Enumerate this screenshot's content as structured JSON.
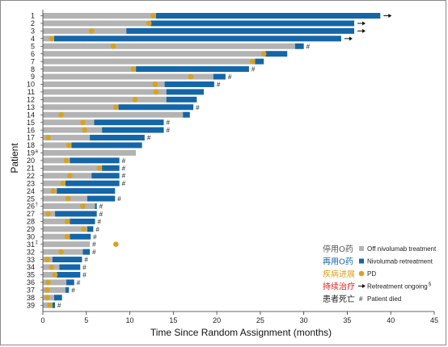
{
  "chart_data": {
    "type": "bar",
    "orientation": "horizontal-stacked",
    "xlabel": "Time Since Random Assignment (months)",
    "ylabel": "Patient",
    "xlim": [
      0,
      45
    ],
    "xticks": [
      0,
      5,
      10,
      15,
      20,
      25,
      30,
      35,
      40,
      45
    ],
    "colors": {
      "off": "#b3b3b3",
      "retreat": "#1466a8",
      "pd": "#d9a21b",
      "arrow": "#111111",
      "cn_off": "#555555",
      "cn_retreat": "#1466a8",
      "cn_pd": "#d9a21b",
      "cn_ongoing": "#e0201c",
      "cn_died": "#222222"
    },
    "legend": [
      {
        "key": "off",
        "cn": "停用O药",
        "en": "Off nivolumab treatment",
        "marker": "gray-square"
      },
      {
        "key": "retreat",
        "cn": "再用O药",
        "en": "Nivolumab retreatment",
        "marker": "blue-square"
      },
      {
        "key": "pd",
        "cn": "疾病进展",
        "en": "PD",
        "marker": "orange-dot"
      },
      {
        "key": "ongoing",
        "cn": "持续治疗",
        "en": "Retreatment ongoing",
        "sup": "§",
        "marker": "arrow"
      },
      {
        "key": "died",
        "cn": "患者死亡",
        "en": "Patient died",
        "marker": "#"
      }
    ],
    "patients": [
      {
        "label": "1",
        "sup": "",
        "off": 13.0,
        "end": 38.8,
        "pd": 12.7,
        "ongoing": true,
        "died": false
      },
      {
        "label": "2",
        "sup": "",
        "off": 12.4,
        "end": 35.8,
        "pd": 12.2,
        "ongoing": true,
        "died": false
      },
      {
        "label": "3",
        "sup": "",
        "off": 9.6,
        "end": 35.8,
        "pd": 5.6,
        "ongoing": true,
        "died": false
      },
      {
        "label": "4",
        "sup": "",
        "off": 1.3,
        "end": 34.3,
        "pd": 1.0,
        "ongoing": true,
        "died": false
      },
      {
        "label": "5",
        "sup": "",
        "off": 29.0,
        "end": 30.0,
        "pd": 8.1,
        "ongoing": false,
        "died": true
      },
      {
        "label": "6",
        "sup": "",
        "off": 25.6,
        "end": 28.1,
        "pd": 25.4,
        "ongoing": false,
        "died": false
      },
      {
        "label": "7",
        "sup": "",
        "off": 24.4,
        "end": 25.4,
        "pd": 24.1,
        "ongoing": false,
        "died": false
      },
      {
        "label": "8",
        "sup": "",
        "off": 10.7,
        "end": 23.7,
        "pd": 10.4,
        "ongoing": false,
        "died": true
      },
      {
        "label": "9",
        "sup": "",
        "off": 19.6,
        "end": 21.0,
        "pd": 17.0,
        "ongoing": false,
        "died": true
      },
      {
        "label": "10",
        "sup": "",
        "off": 14.0,
        "end": 19.7,
        "pd": 12.9,
        "ongoing": false,
        "died": true
      },
      {
        "label": "11",
        "sup": "",
        "off": 14.2,
        "end": 18.5,
        "pd": 13.0,
        "ongoing": false,
        "died": false
      },
      {
        "label": "12",
        "sup": "",
        "off": 14.2,
        "end": 17.7,
        "pd": 10.6,
        "ongoing": false,
        "died": false
      },
      {
        "label": "13",
        "sup": "",
        "off": 8.7,
        "end": 17.3,
        "pd": 8.4,
        "ongoing": false,
        "died": true
      },
      {
        "label": "14",
        "sup": "",
        "off": 16.1,
        "end": 16.9,
        "pd": 2.1,
        "ongoing": false,
        "died": false
      },
      {
        "label": "15",
        "sup": "",
        "off": 5.9,
        "end": 13.9,
        "pd": 4.6,
        "ongoing": false,
        "died": true
      },
      {
        "label": "16",
        "sup": "",
        "off": 6.8,
        "end": 13.9,
        "pd": 4.8,
        "ongoing": false,
        "died": true
      },
      {
        "label": "17",
        "sup": "",
        "off": 5.4,
        "end": 11.7,
        "pd": 0.6,
        "ongoing": false,
        "died": true
      },
      {
        "label": "18",
        "sup": "",
        "off": 3.3,
        "end": 11.4,
        "pd": 3.0,
        "ongoing": false,
        "died": false
      },
      {
        "label": "19",
        "sup": "a",
        "off": 10.7,
        "end": 10.7,
        "pd": null,
        "ongoing": false,
        "died": false
      },
      {
        "label": "20",
        "sup": "",
        "off": 3.1,
        "end": 8.8,
        "pd": 2.7,
        "ongoing": false,
        "died": true
      },
      {
        "label": "21",
        "sup": "",
        "off": 6.8,
        "end": 8.8,
        "pd": 6.5,
        "ongoing": false,
        "died": true
      },
      {
        "label": "22",
        "sup": "",
        "off": 5.6,
        "end": 8.8,
        "pd": 3.1,
        "ongoing": false,
        "died": true
      },
      {
        "label": "23",
        "sup": "",
        "off": 2.6,
        "end": 8.8,
        "pd": 2.3,
        "ongoing": false,
        "died": true
      },
      {
        "label": "24",
        "sup": "",
        "off": 1.6,
        "end": 8.3,
        "pd": 1.2,
        "ongoing": false,
        "died": false
      },
      {
        "label": "25",
        "sup": "",
        "off": 5.1,
        "end": 8.3,
        "pd": 2.9,
        "ongoing": false,
        "died": true
      },
      {
        "label": "26",
        "sup": "†",
        "off": 6.0,
        "end": 6.2,
        "pd": 4.6,
        "ongoing": false,
        "died": true
      },
      {
        "label": "27",
        "sup": "",
        "off": 1.4,
        "end": 6.2,
        "pd": 0.6,
        "ongoing": false,
        "died": true
      },
      {
        "label": "28",
        "sup": "",
        "off": 3.1,
        "end": 6.0,
        "pd": 2.8,
        "ongoing": false,
        "died": true
      },
      {
        "label": "29",
        "sup": "",
        "off": 5.1,
        "end": 5.8,
        "pd": 4.7,
        "ongoing": false,
        "died": true
      },
      {
        "label": "30",
        "sup": "",
        "off": 3.1,
        "end": 5.5,
        "pd": 2.8,
        "ongoing": false,
        "died": true
      },
      {
        "label": "31",
        "sup": "‡",
        "off": 5.4,
        "end": 5.4,
        "pd": 8.4,
        "ongoing": false,
        "died": true
      },
      {
        "label": "32",
        "sup": "",
        "off": 4.6,
        "end": 5.4,
        "pd": 2.1,
        "ongoing": false,
        "died": true
      },
      {
        "label": "33",
        "sup": "",
        "off": 1.1,
        "end": 4.5,
        "pd": 0.5,
        "ongoing": false,
        "died": true
      },
      {
        "label": "34",
        "sup": "",
        "off": 1.9,
        "end": 4.3,
        "pd": 1.0,
        "ongoing": false,
        "died": true
      },
      {
        "label": "35",
        "sup": "",
        "off": 1.6,
        "end": 4.3,
        "pd": 1.4,
        "ongoing": false,
        "died": true
      },
      {
        "label": "36",
        "sup": "",
        "off": 2.7,
        "end": 3.6,
        "pd": 0.6,
        "ongoing": false,
        "died": true
      },
      {
        "label": "37",
        "sup": "",
        "off": 2.6,
        "end": 3.0,
        "pd": 0.5,
        "ongoing": false,
        "died": true
      },
      {
        "label": "38",
        "sup": "",
        "off": 1.3,
        "end": 2.2,
        "pd": 0.5,
        "ongoing": false,
        "died": false
      },
      {
        "label": "39",
        "sup": "",
        "off": 1.1,
        "end": 1.4,
        "pd": 0.8,
        "ongoing": false,
        "died": true
      }
    ]
  }
}
